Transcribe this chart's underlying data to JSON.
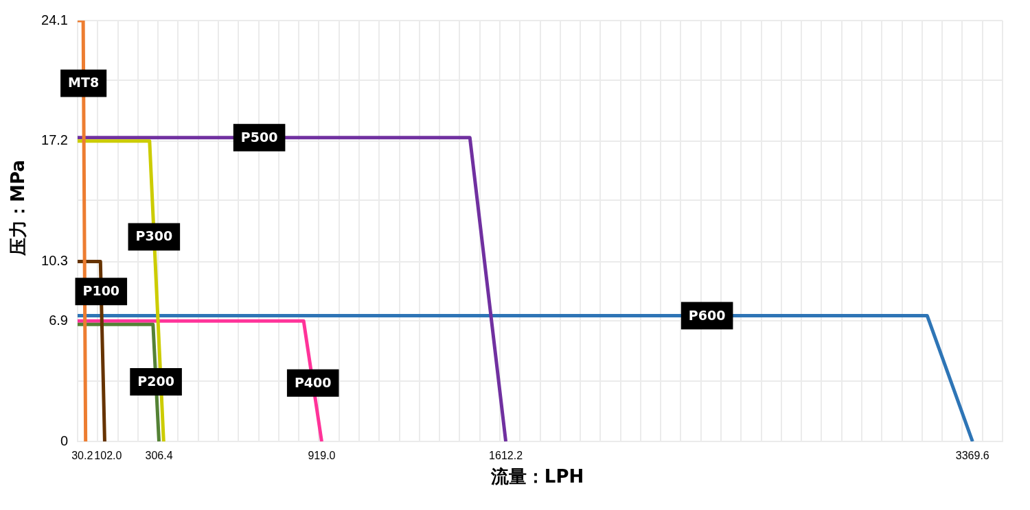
{
  "chart_data": {
    "type": "line",
    "xlabel": "流量：LPH",
    "ylabel": "压力：MPa",
    "series": [
      {
        "name": "MT8",
        "color": "#ed7d31",
        "x": [
          0,
          21,
          30.2
        ],
        "values": [
          24.1,
          24.1,
          0
        ]
      },
      {
        "name": "P100",
        "color": "#663300",
        "x": [
          0,
          86,
          102.0
        ],
        "values": [
          10.3,
          10.3,
          0
        ]
      },
      {
        "name": "P200",
        "color": "#548235",
        "x": [
          0,
          284,
          306.4
        ],
        "values": [
          6.7,
          6.7,
          0
        ]
      },
      {
        "name": "P300",
        "color": "#cccc00",
        "x": [
          0,
          271,
          324
        ],
        "values": [
          17.2,
          17.2,
          0
        ]
      },
      {
        "name": "P400",
        "color": "#ff3399",
        "x": [
          0,
          851,
          919.0
        ],
        "values": [
          6.9,
          6.9,
          0
        ]
      },
      {
        "name": "P500",
        "color": "#7030a0",
        "x": [
          0,
          1477,
          1612.2
        ],
        "values": [
          17.4,
          17.4,
          0
        ]
      },
      {
        "name": "P600",
        "color": "#2e75b6",
        "x": [
          0,
          3199,
          3369.6
        ],
        "values": [
          7.2,
          7.2,
          0
        ]
      }
    ],
    "xlim": [
      0,
      3482.6
    ],
    "xticks": [
      {
        "value": 0,
        "label": null
      },
      30.2,
      {
        "value": 75.7,
        "label": null
      },
      {
        "value": 102.0,
        "label": "102.0"
      },
      {
        "value": 151.4,
        "label": null
      },
      {
        "value": 227.1,
        "label": null
      },
      {
        "value": 302.8,
        "label": null
      },
      306.4,
      {
        "value": 378.5,
        "label": null
      },
      {
        "value": 454.2,
        "label": null
      },
      {
        "value": 530.0,
        "label": null
      },
      {
        "value": 605.7,
        "label": null
      },
      {
        "value": 681.4,
        "label": null
      },
      {
        "value": 757.1,
        "label": null
      },
      {
        "value": 832.8,
        "label": null
      },
      {
        "value": 908.5,
        "label": null
      },
      {
        "value": 919.0,
        "label": "919.0"
      },
      {
        "value": 984.2,
        "label": null
      },
      {
        "value": 1059.9,
        "label": null
      },
      {
        "value": 1135.6,
        "label": null
      },
      {
        "value": 1211.3,
        "label": null
      },
      {
        "value": 1287.0,
        "label": null
      },
      {
        "value": 1362.7,
        "label": null
      },
      {
        "value": 1438.5,
        "label": null
      },
      {
        "value": 1514.2,
        "label": null
      },
      {
        "value": 1589.9,
        "label": null
      },
      1612.2,
      {
        "value": 1665.6,
        "label": null
      },
      {
        "value": 1741.3,
        "label": null
      },
      {
        "value": 1817.0,
        "label": null
      },
      {
        "value": 1892.7,
        "label": null
      },
      {
        "value": 1968.4,
        "label": null
      },
      {
        "value": 2044.1,
        "label": null
      },
      {
        "value": 2119.8,
        "label": null
      },
      {
        "value": 2195.5,
        "label": null
      },
      {
        "value": 2271.2,
        "label": null
      },
      {
        "value": 2347.0,
        "label": null
      },
      {
        "value": 2422.7,
        "label": null
      },
      {
        "value": 2498.4,
        "label": null
      },
      {
        "value": 2574.1,
        "label": null
      },
      {
        "value": 2649.8,
        "label": null
      },
      {
        "value": 2725.5,
        "label": null
      },
      {
        "value": 2801.2,
        "label": null
      },
      {
        "value": 2876.9,
        "label": null
      },
      {
        "value": 2952.6,
        "label": null
      },
      {
        "value": 3028.3,
        "label": null
      },
      {
        "value": 3104.0,
        "label": null
      },
      {
        "value": 3179.7,
        "label": null
      },
      {
        "value": 3255.5,
        "label": null
      },
      {
        "value": 3331.2,
        "label": null
      },
      3369.6,
      {
        "value": 3406.9,
        "label": null
      },
      {
        "value": 3482.6,
        "label": null
      }
    ],
    "ylim": [
      0,
      24.1
    ],
    "yticks": [
      0,
      {
        "value": 3.45,
        "label": null
      },
      6.9,
      10.3,
      {
        "value": 13.8,
        "label": null
      },
      17.2,
      {
        "value": 20.7,
        "label": null
      },
      24.1
    ],
    "grid": true,
    "legend": false,
    "marker": "none",
    "line_style": "solid"
  }
}
